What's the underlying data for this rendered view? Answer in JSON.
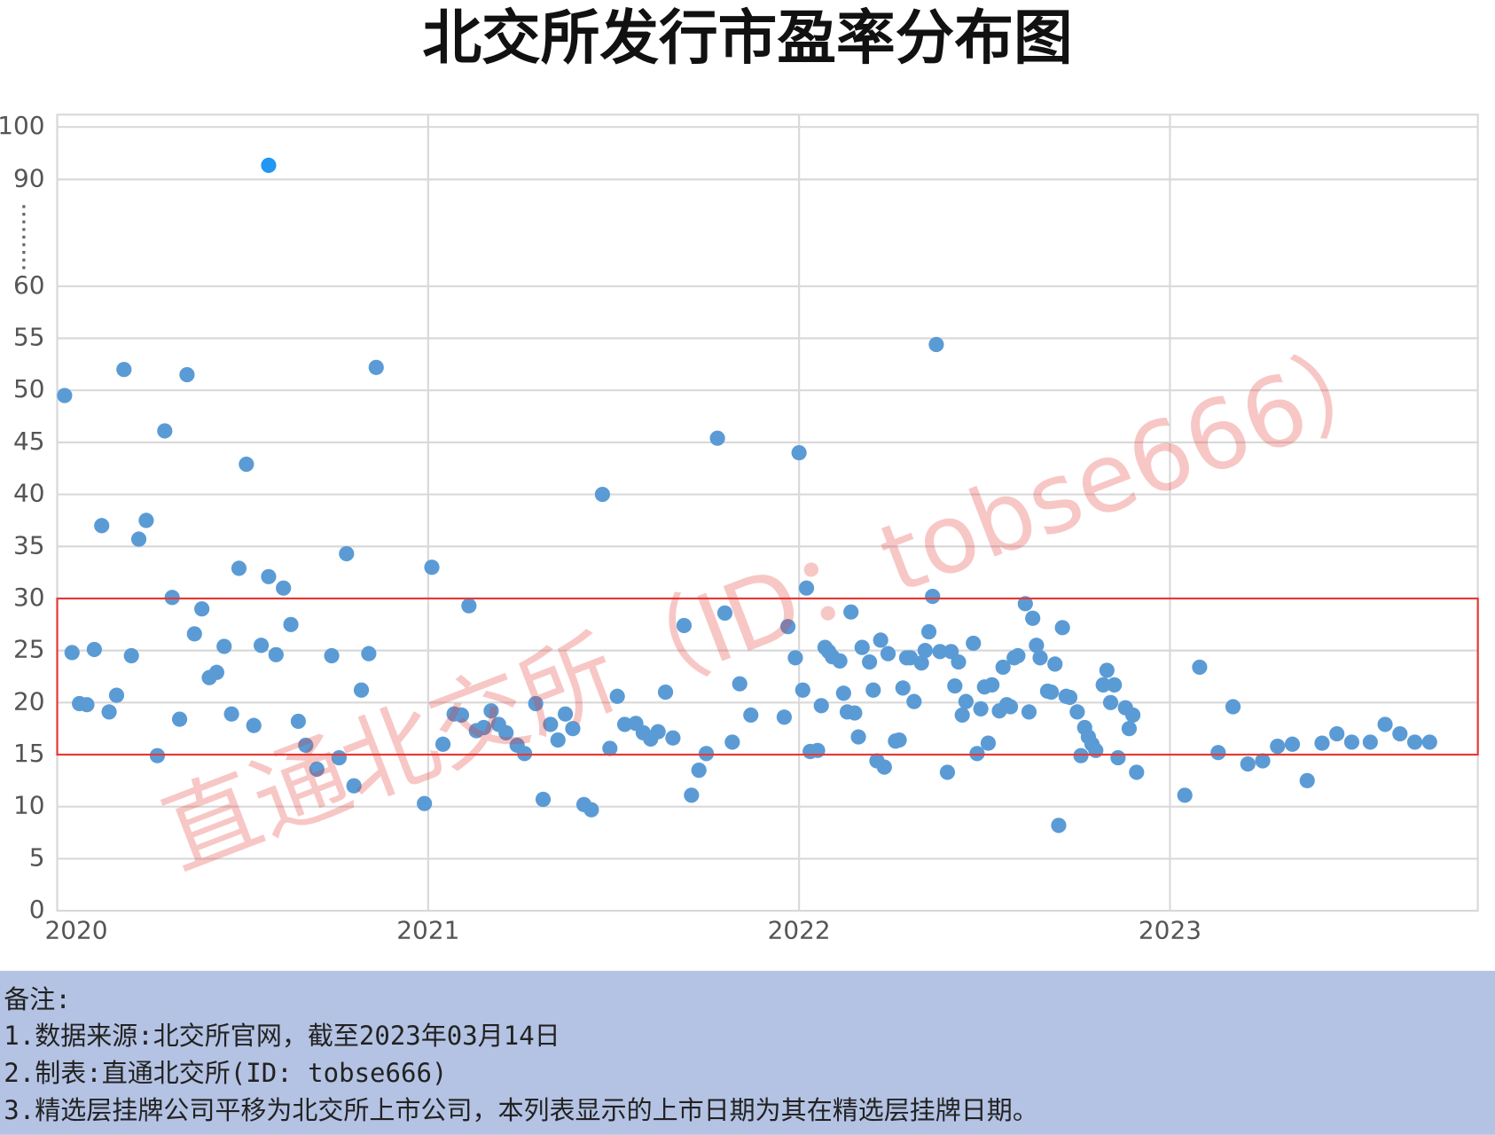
{
  "chart_data": {
    "type": "scatter",
    "title": "北交所发行市盈率分布图",
    "xlim": [
      2020,
      2023.83
    ],
    "xticks": [
      2020,
      2021,
      2022,
      2023
    ],
    "ylim": [
      0,
      100
    ],
    "y_break": [
      60,
      90
    ],
    "yticks": [
      0,
      5,
      10,
      15,
      20,
      25,
      30,
      35,
      40,
      45,
      50,
      55,
      60,
      90,
      100
    ],
    "grid": true,
    "highlight_band": {
      "ylim": [
        15,
        30
      ],
      "color": "#e53935"
    },
    "watermark": "直通北交所（ID：tobse666）",
    "series": [
      {
        "color": "#5b9bd5",
        "x": [
          2020.02,
          2020.04,
          2020.06,
          2020.08,
          2020.1,
          2020.12,
          2020.14,
          2020.16,
          2020.18,
          2020.2,
          2020.22,
          2020.24,
          2020.27,
          2020.29,
          2020.31,
          2020.33,
          2020.35,
          2020.37,
          2020.39,
          2020.41,
          2020.43,
          2020.45,
          2020.47,
          2020.49,
          2020.51,
          2020.53,
          2020.55,
          2020.57,
          2020.59,
          2020.61,
          2020.63,
          2020.65,
          2020.67,
          2020.7,
          2020.74,
          2020.76,
          2020.78,
          2020.8,
          2020.82,
          2020.84,
          2020.86,
          2020.99,
          2021.01,
          2021.04,
          2021.07,
          2021.09,
          2021.11,
          2021.13,
          2021.15,
          2021.17,
          2021.19,
          2021.21,
          2021.24,
          2021.26,
          2021.29,
          2021.31,
          2021.33,
          2021.35,
          2021.37,
          2021.39,
          2021.42,
          2021.44,
          2021.47,
          2021.49,
          2021.51,
          2021.53,
          2021.56,
          2021.58,
          2021.6,
          2021.62,
          2021.64,
          2021.66,
          2021.69,
          2021.71,
          2021.73,
          2021.75,
          2021.78,
          2021.8,
          2021.82,
          2021.84,
          2021.87,
          2021.96,
          2021.97,
          2021.99,
          2022.0,
          2022.01,
          2022.02,
          2022.03,
          2022.05,
          2022.06,
          2022.07,
          2022.08,
          2022.09,
          2022.11,
          2022.12,
          2022.13,
          2022.14,
          2022.15,
          2022.16,
          2022.17,
          2022.19,
          2022.2,
          2022.21,
          2022.22,
          2022.23,
          2022.24,
          2022.26,
          2022.27,
          2022.28,
          2022.29,
          2022.3,
          2022.31,
          2022.33,
          2022.34,
          2022.35,
          2022.36,
          2022.37,
          2022.38,
          2022.4,
          2022.41,
          2022.42,
          2022.43,
          2022.44,
          2022.45,
          2022.47,
          2022.48,
          2022.49,
          2022.5,
          2022.51,
          2022.52,
          2022.54,
          2022.55,
          2022.56,
          2022.57,
          2022.58,
          2022.59,
          2022.61,
          2022.62,
          2022.63,
          2022.64,
          2022.65,
          2022.67,
          2022.68,
          2022.69,
          2022.7,
          2022.71,
          2022.72,
          2022.73,
          2022.75,
          2022.76,
          2022.77,
          2022.78,
          2022.79,
          2022.8,
          2022.82,
          2022.83,
          2022.84,
          2022.85,
          2022.86,
          2022.88,
          2022.89,
          2022.9,
          2022.91,
          2023.04,
          2023.08,
          2023.13,
          2023.17,
          2023.21,
          2023.25,
          2023.29,
          2023.33,
          2023.37,
          2023.41,
          2023.45,
          2023.49,
          2023.54,
          2023.58,
          2023.62,
          2023.66,
          2023.7
        ],
        "values": [
          49.5,
          24.8,
          19.9,
          19.8,
          25.1,
          37.0,
          19.1,
          20.7,
          52.0,
          24.5,
          35.7,
          37.5,
          14.9,
          46.1,
          30.1,
          18.4,
          51.5,
          26.6,
          29.0,
          22.4,
          22.9,
          25.4,
          18.9,
          32.9,
          42.9,
          17.8,
          25.5,
          32.1,
          24.6,
          31.0,
          27.5,
          18.2,
          15.9,
          13.6,
          24.5,
          14.7,
          34.3,
          12.0,
          21.2,
          24.7,
          52.2,
          10.3,
          33.0,
          16.0,
          18.9,
          18.8,
          29.3,
          17.3,
          17.6,
          19.2,
          17.9,
          17.1,
          15.9,
          15.1,
          19.9,
          10.7,
          17.9,
          16.4,
          18.9,
          17.5,
          10.2,
          9.7,
          40.0,
          15.6,
          20.6,
          17.9,
          18.0,
          17.1,
          16.5,
          17.2,
          21.0,
          16.6,
          27.4,
          11.1,
          13.5,
          15.1,
          45.4,
          28.6,
          16.2,
          21.8,
          18.8,
          18.6,
          27.3,
          24.3,
          44.0,
          21.2,
          31.0,
          15.3,
          15.4,
          19.7,
          25.3,
          24.9,
          24.4,
          24.0,
          20.9,
          19.1,
          28.7,
          19.0,
          16.7,
          25.3,
          23.9,
          21.2,
          14.4,
          26.0,
          13.8,
          24.7,
          16.3,
          16.4,
          21.4,
          24.3,
          24.3,
          20.1,
          23.8,
          25.0,
          26.8,
          30.2,
          54.4,
          24.9,
          13.3,
          24.9,
          21.6,
          23.9,
          18.8,
          20.1,
          25.7,
          15.1,
          19.4,
          21.5,
          16.1,
          21.7,
          19.2,
          23.4,
          19.8,
          19.6,
          24.3,
          24.5,
          29.5,
          19.1,
          28.1,
          25.5,
          24.3,
          21.1,
          21.0,
          23.7,
          8.2,
          27.2,
          20.6,
          20.5,
          19.1,
          14.9,
          17.6,
          16.7,
          16.0,
          15.4,
          21.7,
          23.1,
          20.0,
          21.7,
          14.7,
          19.5,
          17.5,
          18.8,
          13.3,
          11.1,
          23.4,
          15.2,
          19.6,
          14.1,
          14.4,
          15.8,
          16.0,
          12.5,
          16.1,
          17.0,
          16.2,
          16.2,
          17.9,
          17.0,
          16.2,
          16.2
        ]
      },
      {
        "color": "#2196f3",
        "x": [
          2020.57
        ],
        "values": [
          92.7
        ]
      }
    ]
  },
  "footer": {
    "heading": "备注:",
    "lines": [
      "1.数据来源:北交所官网，截至2023年03月14日",
      "2.制表:直通北交所(ID: tobse666)",
      "3.精选层挂牌公司平移为北交所上市公司，本列表显示的上市日期为其在精选层挂牌日期。"
    ]
  }
}
